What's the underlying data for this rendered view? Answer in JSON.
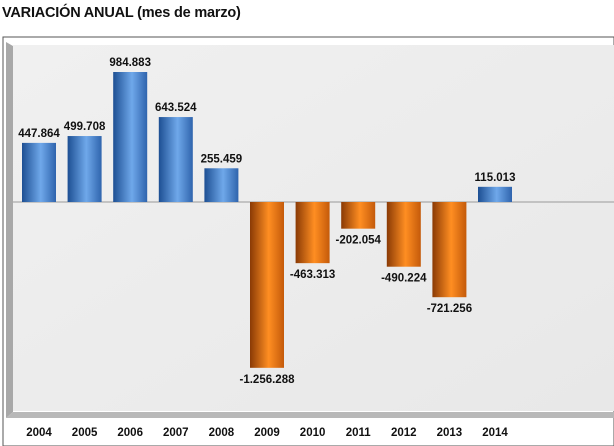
{
  "chart_data": {
    "type": "bar",
    "title": "VARIACIÓN ANUAL (mes de marzo)",
    "xlabel": "",
    "ylabel": "",
    "categories": [
      "2004",
      "2005",
      "2006",
      "2007",
      "2008",
      "2009",
      "2010",
      "2011",
      "2012",
      "2013",
      "2014"
    ],
    "values": [
      447864,
      499708,
      984883,
      643524,
      255459,
      -1256288,
      -463313,
      -202054,
      -490224,
      -721256,
      115013
    ],
    "labels": [
      "447.864",
      "499.708",
      "984.883",
      "643.524",
      "255.459",
      "-1.256.288",
      "-463.313",
      "-202.054",
      "-490.224",
      "-721.256",
      "115.013"
    ],
    "ylim": [
      -1600000,
      1100000
    ],
    "grid": false,
    "legend": "none",
    "colors": {
      "positive": "#4a86d0",
      "negative": "#f0801a"
    }
  }
}
